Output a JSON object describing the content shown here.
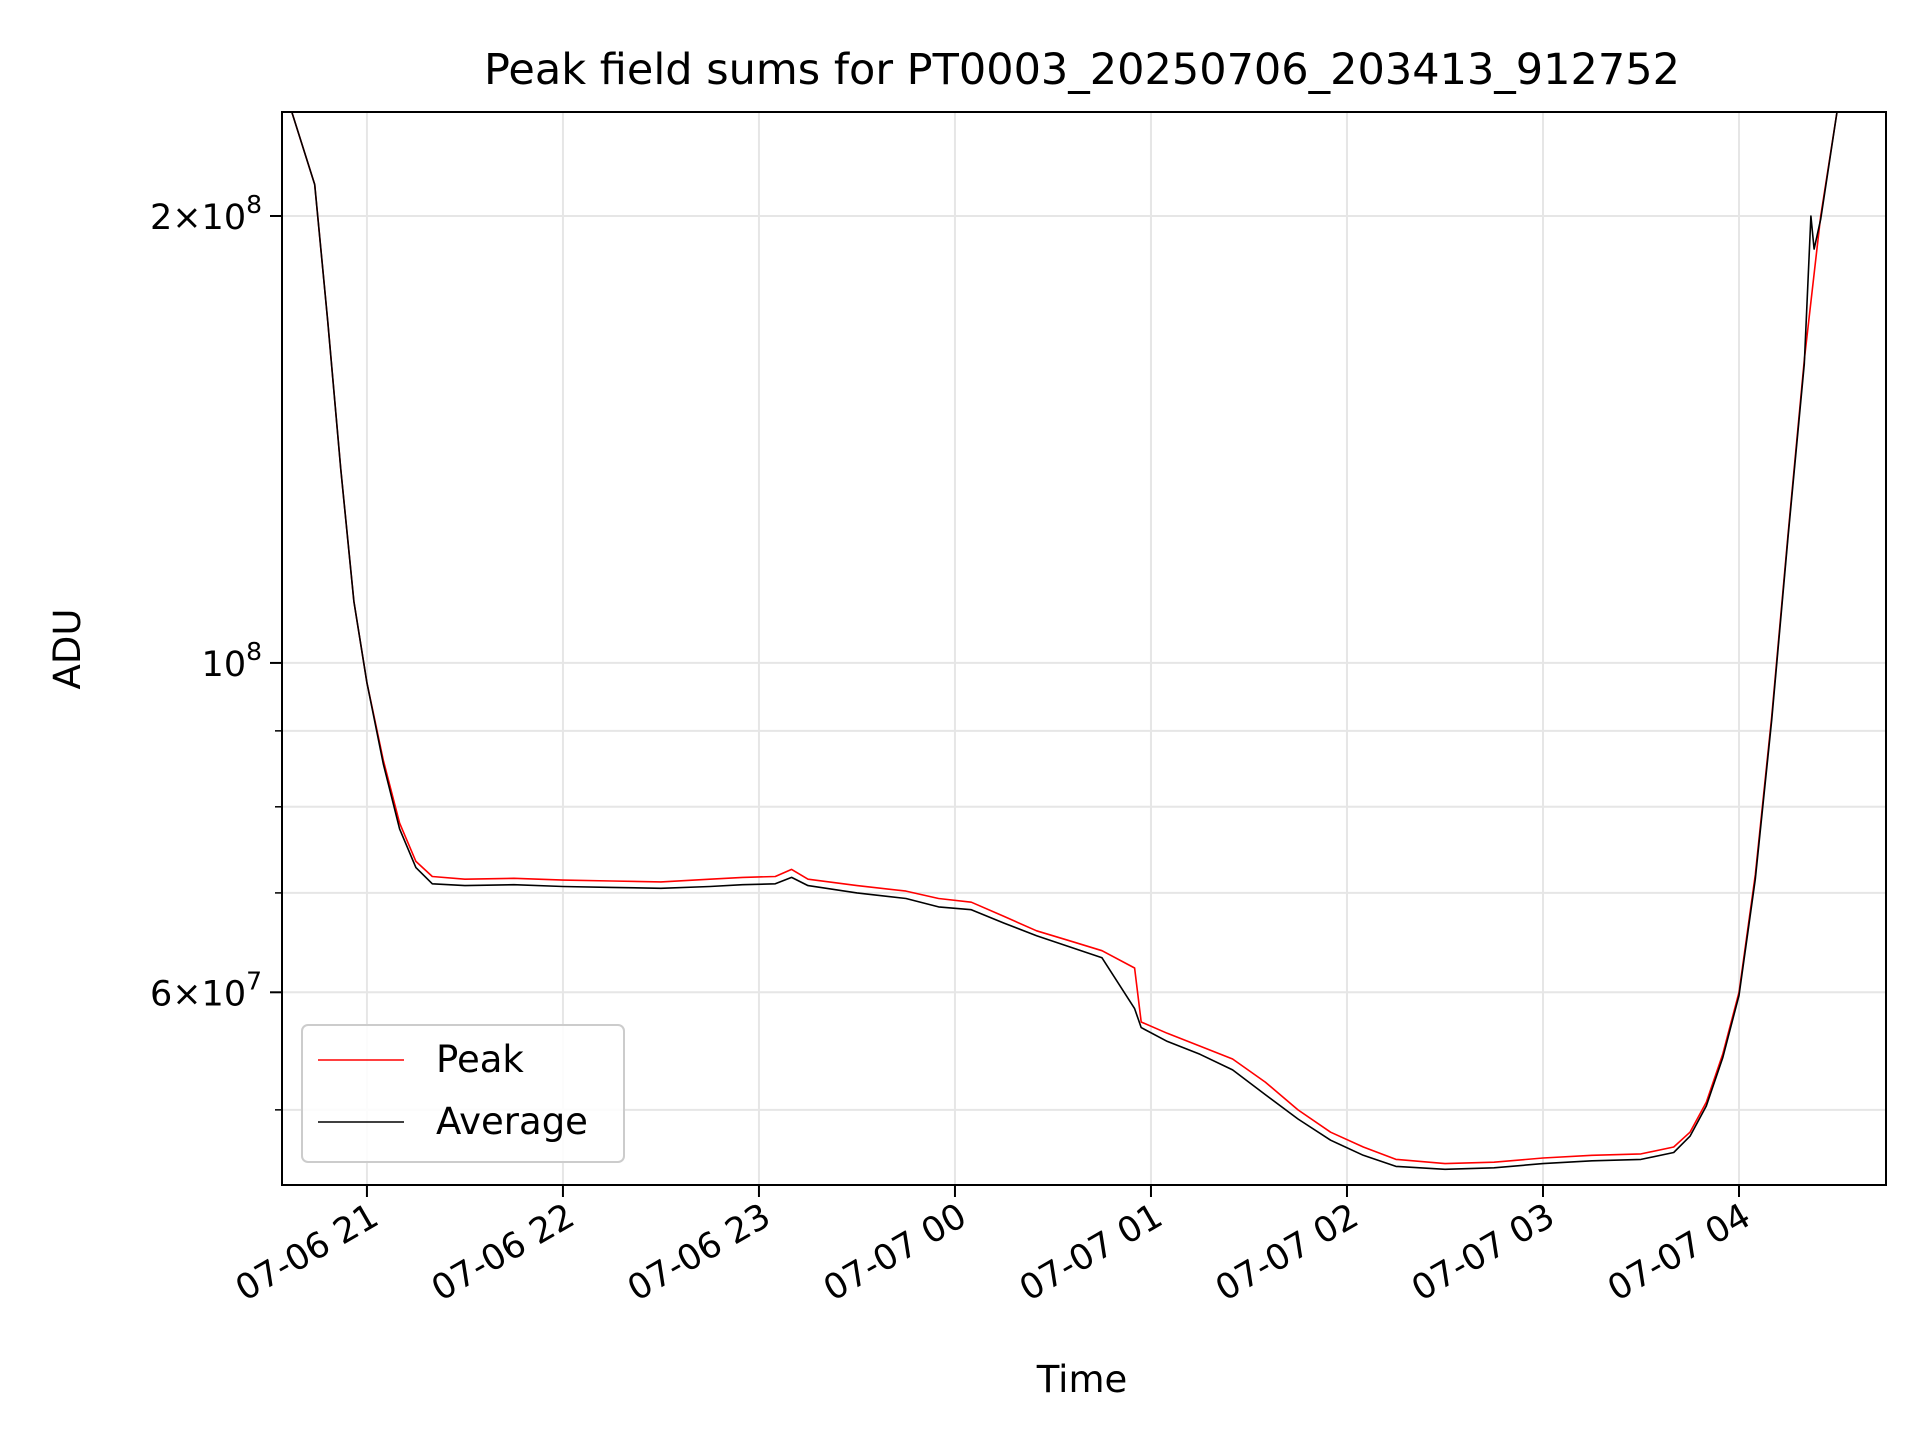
{
  "chart_data": {
    "type": "line",
    "title": "Peak field sums for PT0003_20250706_203413_912752",
    "xlabel": "Time",
    "ylabel": "ADU",
    "yscale": "log",
    "grid": true,
    "legend_position": "lower-left",
    "xlim": [
      "2025-07-06 20:34",
      "2025-07-07 04:45"
    ],
    "ylim": [
      44500000,
      235000000
    ],
    "x_ticks": [
      {
        "value": "2025-07-06 21:00",
        "label": "07-06 21"
      },
      {
        "value": "2025-07-06 22:00",
        "label": "07-06 22"
      },
      {
        "value": "2025-07-06 23:00",
        "label": "07-06 23"
      },
      {
        "value": "2025-07-07 00:00",
        "label": "07-07 00"
      },
      {
        "value": "2025-07-07 01:00",
        "label": "07-07 01"
      },
      {
        "value": "2025-07-07 02:00",
        "label": "07-07 02"
      },
      {
        "value": "2025-07-07 03:00",
        "label": "07-07 03"
      },
      {
        "value": "2025-07-07 04:00",
        "label": "07-07 04"
      }
    ],
    "y_major_ticks": [
      {
        "value": 100000000,
        "base": "10",
        "exp": "8",
        "mantissa": ""
      },
      {
        "value": 200000000,
        "base": "10",
        "exp": "8",
        "mantissa": "2"
      },
      {
        "value": 60000000,
        "base": "10",
        "exp": "7",
        "mantissa": "6"
      }
    ],
    "y_minor_ticks": [
      50000000,
      70000000,
      80000000,
      90000000
    ],
    "series": [
      {
        "name": "Peak",
        "color": "#ff0000",
        "points": [
          [
            "2025-07-06 20:37",
            235000000
          ],
          [
            "2025-07-06 20:44",
            210000000
          ],
          [
            "2025-07-06 20:48",
            170000000
          ],
          [
            "2025-07-06 20:52",
            135000000
          ],
          [
            "2025-07-06 20:56",
            110000000
          ],
          [
            "2025-07-06 21:00",
            97000000
          ],
          [
            "2025-07-06 21:05",
            86000000
          ],
          [
            "2025-07-06 21:10",
            78000000
          ],
          [
            "2025-07-06 21:15",
            73500000
          ],
          [
            "2025-07-06 21:20",
            71800000
          ],
          [
            "2025-07-06 21:30",
            71500000
          ],
          [
            "2025-07-06 21:45",
            71600000
          ],
          [
            "2025-07-06 22:00",
            71400000
          ],
          [
            "2025-07-06 22:15",
            71300000
          ],
          [
            "2025-07-06 22:30",
            71200000
          ],
          [
            "2025-07-06 22:45",
            71500000
          ],
          [
            "2025-07-06 22:55",
            71700000
          ],
          [
            "2025-07-06 23:05",
            71800000
          ],
          [
            "2025-07-06 23:10",
            72600000
          ],
          [
            "2025-07-06 23:15",
            71500000
          ],
          [
            "2025-07-06 23:30",
            70800000
          ],
          [
            "2025-07-06 23:45",
            70200000
          ],
          [
            "2025-07-06 23:55",
            69400000
          ],
          [
            "2025-07-07 00:05",
            69000000
          ],
          [
            "2025-07-07 00:15",
            67500000
          ],
          [
            "2025-07-07 00:25",
            66000000
          ],
          [
            "2025-07-07 00:35",
            65000000
          ],
          [
            "2025-07-07 00:45",
            64000000
          ],
          [
            "2025-07-07 00:55",
            62300000
          ],
          [
            "2025-07-07 00:57",
            57300000
          ],
          [
            "2025-07-07 01:05",
            56300000
          ],
          [
            "2025-07-07 01:15",
            55200000
          ],
          [
            "2025-07-07 01:25",
            54100000
          ],
          [
            "2025-07-07 01:35",
            52200000
          ],
          [
            "2025-07-07 01:45",
            50000000
          ],
          [
            "2025-07-07 01:55",
            48300000
          ],
          [
            "2025-07-07 02:05",
            47200000
          ],
          [
            "2025-07-07 02:15",
            46300000
          ],
          [
            "2025-07-07 02:30",
            46000000
          ],
          [
            "2025-07-07 02:45",
            46100000
          ],
          [
            "2025-07-07 03:00",
            46400000
          ],
          [
            "2025-07-07 03:15",
            46600000
          ],
          [
            "2025-07-07 03:30",
            46700000
          ],
          [
            "2025-07-07 03:40",
            47200000
          ],
          [
            "2025-07-07 03:45",
            48300000
          ],
          [
            "2025-07-07 03:50",
            50600000
          ],
          [
            "2025-07-07 03:55",
            54500000
          ],
          [
            "2025-07-07 04:00",
            60000000
          ],
          [
            "2025-07-07 04:05",
            72000000
          ],
          [
            "2025-07-07 04:10",
            92000000
          ],
          [
            "2025-07-07 04:15",
            122000000
          ],
          [
            "2025-07-07 04:20",
            160000000
          ],
          [
            "2025-07-07 04:25",
            200000000
          ],
          [
            "2025-07-07 04:30",
            235000000
          ]
        ]
      },
      {
        "name": "Average",
        "color": "#000000",
        "points": [
          [
            "2025-07-06 20:37",
            235000000
          ],
          [
            "2025-07-06 20:44",
            210000000
          ],
          [
            "2025-07-06 20:48",
            170000000
          ],
          [
            "2025-07-06 20:52",
            135000000
          ],
          [
            "2025-07-06 20:56",
            110000000
          ],
          [
            "2025-07-06 21:00",
            97000000
          ],
          [
            "2025-07-06 21:05",
            85500000
          ],
          [
            "2025-07-06 21:10",
            77300000
          ],
          [
            "2025-07-06 21:15",
            72800000
          ],
          [
            "2025-07-06 21:20",
            71000000
          ],
          [
            "2025-07-06 21:30",
            70800000
          ],
          [
            "2025-07-06 21:45",
            70900000
          ],
          [
            "2025-07-06 22:00",
            70700000
          ],
          [
            "2025-07-06 22:15",
            70600000
          ],
          [
            "2025-07-06 22:30",
            70500000
          ],
          [
            "2025-07-06 22:45",
            70700000
          ],
          [
            "2025-07-06 22:55",
            70900000
          ],
          [
            "2025-07-06 23:05",
            71000000
          ],
          [
            "2025-07-06 23:10",
            71700000
          ],
          [
            "2025-07-06 23:15",
            70800000
          ],
          [
            "2025-07-06 23:30",
            70000000
          ],
          [
            "2025-07-06 23:45",
            69400000
          ],
          [
            "2025-07-06 23:55",
            68500000
          ],
          [
            "2025-07-07 00:05",
            68200000
          ],
          [
            "2025-07-07 00:15",
            66800000
          ],
          [
            "2025-07-07 00:25",
            65500000
          ],
          [
            "2025-07-07 00:35",
            64400000
          ],
          [
            "2025-07-07 00:45",
            63300000
          ],
          [
            "2025-07-07 00:55",
            58500000
          ],
          [
            "2025-07-07 00:57",
            56800000
          ],
          [
            "2025-07-07 01:05",
            55600000
          ],
          [
            "2025-07-07 01:15",
            54500000
          ],
          [
            "2025-07-07 01:25",
            53200000
          ],
          [
            "2025-07-07 01:35",
            51200000
          ],
          [
            "2025-07-07 01:45",
            49300000
          ],
          [
            "2025-07-07 01:55",
            47700000
          ],
          [
            "2025-07-07 02:05",
            46600000
          ],
          [
            "2025-07-07 02:15",
            45800000
          ],
          [
            "2025-07-07 02:30",
            45600000
          ],
          [
            "2025-07-07 02:45",
            45700000
          ],
          [
            "2025-07-07 03:00",
            46000000
          ],
          [
            "2025-07-07 03:15",
            46200000
          ],
          [
            "2025-07-07 03:30",
            46300000
          ],
          [
            "2025-07-07 03:40",
            46800000
          ],
          [
            "2025-07-07 03:45",
            48000000
          ],
          [
            "2025-07-07 03:50",
            50300000
          ],
          [
            "2025-07-07 03:55",
            54200000
          ],
          [
            "2025-07-07 04:00",
            59700000
          ],
          [
            "2025-07-07 04:05",
            71500000
          ],
          [
            "2025-07-07 04:10",
            91500000
          ],
          [
            "2025-07-07 04:15",
            121500000
          ],
          [
            "2025-07-07 04:20",
            159000000
          ],
          [
            "2025-07-07 04:22",
            200000000
          ],
          [
            "2025-07-07 04:23",
            190000000
          ],
          [
            "2025-07-07 04:25",
            199000000
          ],
          [
            "2025-07-07 04:30",
            235000000
          ]
        ]
      }
    ]
  }
}
